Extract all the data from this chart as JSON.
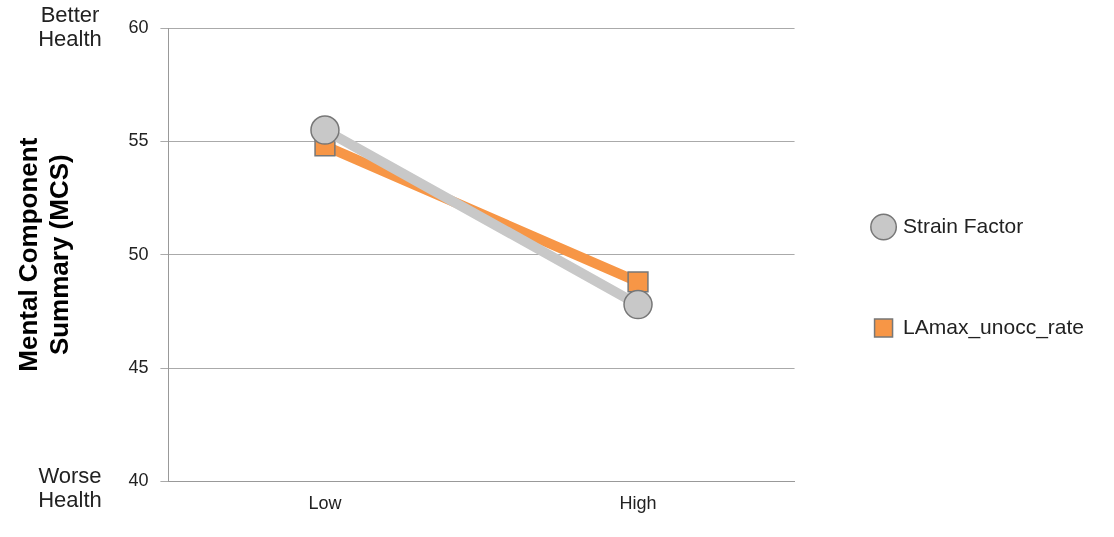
{
  "chart_data": {
    "type": "line",
    "ylabel": "Mental Component Summary (MCS)",
    "categories": [
      "Low",
      "High"
    ],
    "series": [
      {
        "name": "Strain Factor",
        "color": "#c8c8c8",
        "marker": "circle",
        "values": [
          55.5,
          47.8
        ]
      },
      {
        "name": "LAmax_unocc_rate",
        "color": "#f79646",
        "marker": "square",
        "values": [
          54.8,
          48.8
        ]
      }
    ],
    "ylim": [
      40,
      60
    ],
    "yticks": [
      40,
      45,
      50,
      55,
      60
    ],
    "grid": "y",
    "legend": "right",
    "annotations": [
      "Better Health",
      "Worse Health"
    ]
  }
}
